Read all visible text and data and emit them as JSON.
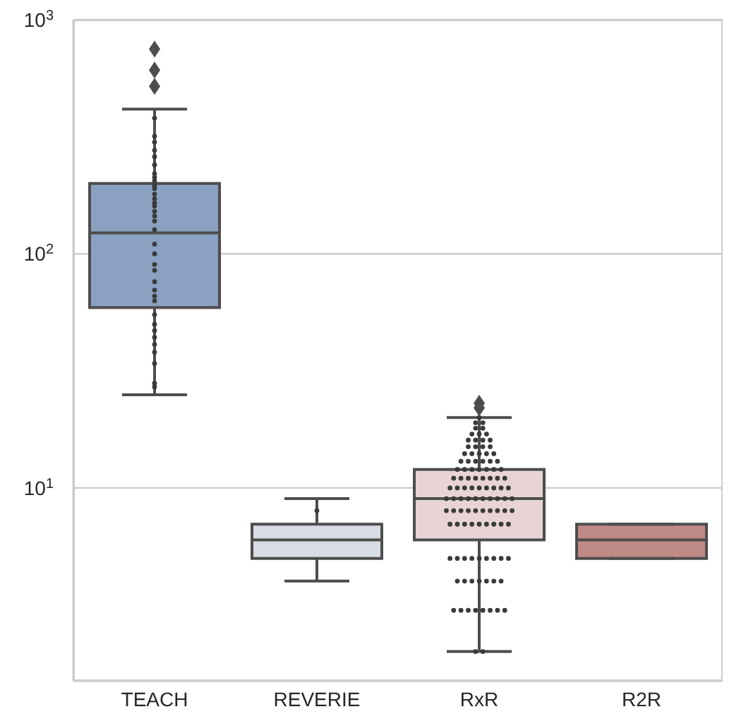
{
  "chart_data": {
    "type": "box",
    "categories": [
      "TEACH",
      "REVERIE",
      "RxR",
      "R2R"
    ],
    "colors": [
      "#8aa1c1",
      "#d8dce4",
      "#e8d4d4",
      "#c08a86"
    ],
    "boxes": [
      {
        "low": 25,
        "q1": 59,
        "median": 123,
        "q3": 200,
        "high": 415,
        "outliers": [
          520,
          610,
          750
        ]
      },
      {
        "low": 4,
        "q1": 5,
        "median": 6,
        "q3": 7,
        "high": 9
      },
      {
        "low": 2,
        "q1": 6,
        "median": 9,
        "q3": 12,
        "high": 20,
        "outliers": [
          22,
          23
        ]
      },
      {
        "low": 5,
        "q1": 5,
        "median": 6,
        "q3": 7,
        "high": 7
      }
    ],
    "series": [
      {
        "type": "scatter",
        "color": "#3a3a3a",
        "x": [
          "TEACH",
          "TEACH",
          "TEACH",
          "TEACH",
          "TEACH",
          "TEACH",
          "TEACH",
          "TEACH",
          "TEACH",
          "TEACH",
          "TEACH",
          "TEACH",
          "TEACH",
          "TEACH",
          "TEACH",
          "TEACH",
          "TEACH",
          "TEACH",
          "TEACH",
          "TEACH",
          "TEACH",
          "TEACH",
          "TEACH",
          "TEACH",
          "TEACH",
          "TEACH",
          "TEACH",
          "TEACH",
          "TEACH",
          "TEACH",
          "TEACH",
          "TEACH",
          "TEACH",
          "TEACH",
          "TEACH",
          "TEACH",
          "REVERIE",
          "RxR",
          "RxR",
          "RxR",
          "RxR",
          "RxR",
          "RxR",
          "RxR",
          "RxR",
          "RxR",
          "RxR",
          "RxR",
          "RxR",
          "RxR",
          "RxR",
          "RxR",
          "RxR",
          "RxR",
          "RxR",
          "RxR",
          "RxR",
          "RxR",
          "RxR",
          "RxR",
          "RxR",
          "RxR",
          "RxR",
          "RxR",
          "RxR",
          "RxR",
          "RxR",
          "RxR",
          "RxR",
          "RxR",
          "RxR",
          "RxR",
          "RxR",
          "RxR",
          "RxR",
          "RxR",
          "RxR",
          "RxR",
          "RxR",
          "RxR",
          "RxR",
          "RxR",
          "RxR",
          "RxR",
          "RxR",
          "RxR",
          "RxR",
          "RxR",
          "RxR",
          "RxR",
          "RxR",
          "RxR",
          "RxR",
          "RxR",
          "RxR",
          "RxR",
          "RxR",
          "RxR",
          "RxR",
          "RxR",
          "RxR",
          "RxR",
          "RxR",
          "RxR",
          "RxR",
          "RxR",
          "RxR",
          "RxR",
          "RxR",
          "RxR",
          "RxR",
          "RxR",
          "RxR",
          "RxR",
          "RxR",
          "RxR",
          "RxR",
          "RxR",
          "RxR",
          "RxR",
          "RxR",
          "RxR",
          "RxR",
          "RxR",
          "RxR",
          "RxR",
          "RxR",
          "RxR",
          "RxR",
          "RxR",
          "RxR",
          "RxR",
          "RxR",
          "RxR",
          "RxR",
          "RxR",
          "RxR",
          "RxR",
          "RxR",
          "RxR",
          "RxR",
          "RxR",
          "RxR"
        ],
        "values": [
          27,
          28,
          34,
          38,
          41,
          44,
          47,
          50,
          55,
          63,
          66,
          70,
          76,
          85,
          90,
          100,
          110,
          127,
          138,
          145,
          152,
          160,
          165,
          172,
          180,
          190,
          195,
          205,
          212,
          220,
          240,
          260,
          277,
          300,
          318,
          380,
          8,
          2,
          2,
          3,
          3,
          3,
          3,
          3,
          3,
          3,
          3,
          4,
          4,
          4,
          4,
          4,
          4,
          4,
          5,
          5,
          5,
          5,
          5,
          5,
          5,
          5,
          5,
          7,
          7,
          7,
          7,
          7,
          7,
          7,
          7,
          7,
          8,
          8,
          8,
          8,
          8,
          8,
          8,
          8,
          8,
          8,
          9,
          9,
          9,
          9,
          9,
          9,
          9,
          9,
          9,
          9,
          10,
          10,
          10,
          10,
          10,
          10,
          10,
          10,
          10,
          11,
          11,
          11,
          11,
          11,
          11,
          11,
          11,
          12,
          12,
          12,
          12,
          12,
          12,
          12,
          13,
          13,
          13,
          13,
          13,
          13,
          14,
          14,
          14,
          14,
          14,
          15,
          15,
          15,
          15,
          16,
          16,
          16,
          16,
          17,
          17,
          17,
          18,
          18,
          19,
          19,
          20
        ]
      }
    ],
    "ylim": [
      1.5,
      1000
    ],
    "yticks": [
      {
        "value": 10,
        "label": "10$^{1}$"
      },
      {
        "value": 100,
        "label": "10$^{2}$"
      },
      {
        "value": 1000,
        "label": "10$^{3}$"
      }
    ],
    "log": true,
    "grid": "y"
  }
}
